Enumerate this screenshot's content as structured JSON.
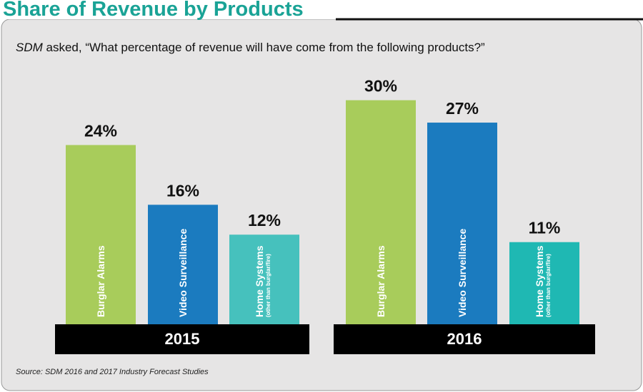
{
  "chart_data": {
    "type": "bar",
    "title": "Share of Revenue by Products",
    "subtitle_em": "SDM",
    "subtitle": "asked, “What percentage of revenue will have come from the following products?”",
    "source": "Source: SDM 2016 and 2017 Industry Forecast Studies",
    "groups": [
      {
        "name": "2015",
        "categories": [
          "Burglar Alarms",
          "Video Surveillance",
          "Home Systems"
        ],
        "category_notes": [
          null,
          null,
          "(other than burglar/fire)"
        ],
        "values": [
          24,
          16,
          12
        ],
        "value_labels": [
          "24%",
          "16%",
          "12%"
        ],
        "colors": [
          "#a8cc5b",
          "#1b7bbf",
          "#46c1bd"
        ]
      },
      {
        "name": "2016",
        "categories": [
          "Burglar Alarms",
          "Video Surveillance",
          "Home Systems"
        ],
        "category_notes": [
          null,
          null,
          "(other than burglar/fire)"
        ],
        "values": [
          30,
          27,
          11
        ],
        "value_labels": [
          "30%",
          "27%",
          "11%"
        ],
        "colors": [
          "#a8cc5b",
          "#1b7bbf",
          "#1fb8b3"
        ]
      }
    ]
  }
}
